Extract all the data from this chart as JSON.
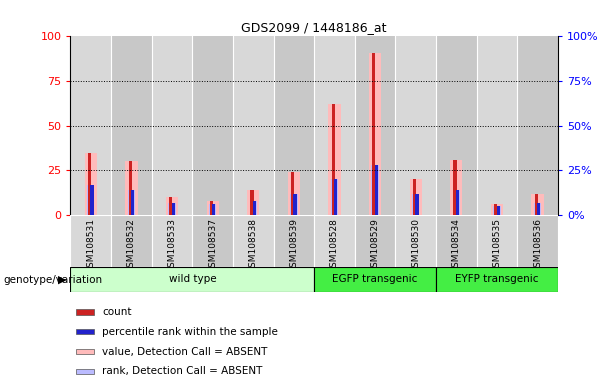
{
  "title": "GDS2099 / 1448186_at",
  "samples": [
    "GSM108531",
    "GSM108532",
    "GSM108533",
    "GSM108537",
    "GSM108538",
    "GSM108539",
    "GSM108528",
    "GSM108529",
    "GSM108530",
    "GSM108534",
    "GSM108535",
    "GSM108536"
  ],
  "count_values": [
    35,
    30,
    10,
    8,
    14,
    24,
    62,
    91,
    20,
    31,
    6,
    12
  ],
  "percentile_values": [
    17,
    14,
    7,
    6,
    8,
    12,
    20,
    28,
    12,
    14,
    5,
    7
  ],
  "absent_value_values": [
    35,
    30,
    10,
    8,
    14,
    24,
    62,
    91,
    20,
    31,
    6,
    12
  ],
  "absent_rank_values": [
    17,
    14,
    7,
    6,
    8,
    12,
    20,
    28,
    12,
    14,
    5,
    7
  ],
  "groups": [
    {
      "label": "wild type",
      "start": 0,
      "end": 6,
      "color": "#ccffcc"
    },
    {
      "label": "EGFP transgenic",
      "start": 6,
      "end": 9,
      "color": "#44ee44"
    },
    {
      "label": "EYFP transgenic",
      "start": 9,
      "end": 12,
      "color": "#44ee44"
    }
  ],
  "ylim": [
    0,
    100
  ],
  "yticks": [
    0,
    25,
    50,
    75,
    100
  ],
  "color_count": "#cc2222",
  "color_percentile": "#2222cc",
  "color_absent_value": "#ffbbbb",
  "color_absent_rank": "#bbbbff",
  "legend_items": [
    {
      "label": "count",
      "color": "#cc2222"
    },
    {
      "label": "percentile rank within the sample",
      "color": "#2222cc"
    },
    {
      "label": "value, Detection Call = ABSENT",
      "color": "#ffbbbb"
    },
    {
      "label": "rank, Detection Call = ABSENT",
      "color": "#bbbbff"
    }
  ],
  "bg_col_even": "#d8d8d8",
  "bg_col_odd": "#c8c8c8",
  "plot_bg": "#ffffff",
  "grid_color": "#000000"
}
